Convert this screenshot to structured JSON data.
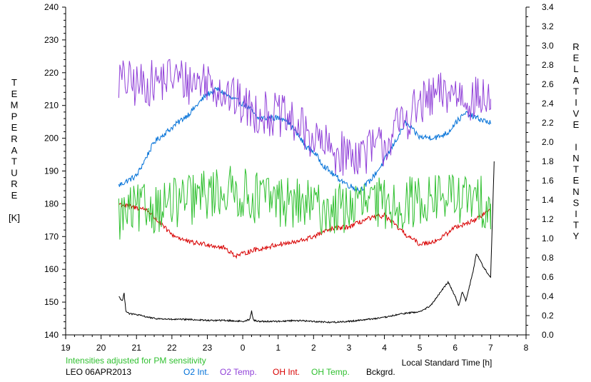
{
  "chart_data": {
    "type": "line",
    "x_unit": "Local Standard Time [h]",
    "xlabel": "Local Standard Time [h]",
    "ylabel_left": [
      "T",
      "E",
      "M",
      "P",
      "E",
      "R",
      "A",
      "T",
      "U",
      "R",
      "E",
      "",
      "[K]"
    ],
    "ylabel_right": [
      "R",
      "E",
      "L",
      "A",
      "T",
      "I",
      "V",
      "E",
      "",
      "I",
      "N",
      "T",
      "E",
      "N",
      "S",
      "I",
      "T",
      "Y"
    ],
    "x_ticks": [
      "19",
      "20",
      "21",
      "22",
      "23",
      "0",
      "1",
      "2",
      "3",
      "4",
      "5",
      "6",
      "7",
      "8"
    ],
    "x_range": [
      19,
      32
    ],
    "y_left_ticks": [
      "140",
      "150",
      "160",
      "170",
      "180",
      "190",
      "200",
      "210",
      "220",
      "230",
      "240"
    ],
    "y_left_range": [
      140,
      240
    ],
    "y_right_ticks": [
      "0.0",
      "0.2",
      "0.4",
      "0.6",
      "0.8",
      "1.0",
      "1.2",
      "1.4",
      "1.6",
      "1.8",
      "2.0",
      "2.2",
      "2.4",
      "2.6",
      "2.8",
      "3.0",
      "3.2",
      "3.4"
    ],
    "y_right_range": [
      0,
      3.4
    ],
    "footnote_pm": "Intensities adjusted for PM sensitivity",
    "station_date": "LEO 06APR2013",
    "series": [
      {
        "name": "O2 Int.",
        "axis": "right",
        "color": "#0070d8",
        "x": [
          20.5,
          21.0,
          21.5,
          22.0,
          22.5,
          23.0,
          23.3,
          23.7,
          24.0,
          24.2,
          24.4,
          24.8,
          25.2,
          25.5,
          25.8,
          26.0,
          26.3,
          26.6,
          27.0,
          27.3,
          27.6,
          27.9,
          28.3,
          28.6,
          29.0,
          29.5,
          29.8,
          30.0,
          30.3,
          30.6,
          31.0
        ],
        "y": [
          1.55,
          1.65,
          2.0,
          2.15,
          2.3,
          2.5,
          2.55,
          2.45,
          2.4,
          2.35,
          2.25,
          2.25,
          2.25,
          2.1,
          1.95,
          1.9,
          1.75,
          1.65,
          1.55,
          1.5,
          1.6,
          1.75,
          2.0,
          2.2,
          2.05,
          2.05,
          2.1,
          2.2,
          2.3,
          2.25,
          2.2
        ]
      },
      {
        "name": "O2 Temp.",
        "axis": "left",
        "color": "#9040d8",
        "x": [
          20.5,
          21.0,
          21.5,
          22.0,
          22.5,
          23.0,
          23.5,
          24.0,
          24.3,
          24.5,
          25.0,
          25.5,
          26.0,
          26.5,
          27.0,
          27.5,
          28.0,
          28.5,
          29.0,
          29.5,
          30.0,
          30.5,
          31.0
        ],
        "y": [
          218,
          216,
          217,
          219,
          217,
          218,
          214,
          210,
          208,
          208,
          207,
          204,
          200,
          196,
          195,
          196,
          198,
          205,
          210,
          213,
          214,
          212,
          212
        ]
      },
      {
        "name": "OH Int.",
        "axis": "right",
        "color": "#d80000",
        "x": [
          20.5,
          20.8,
          21.0,
          21.3,
          21.6,
          22.0,
          22.5,
          23.0,
          23.5,
          23.8,
          24.0,
          24.3,
          24.6,
          25.0,
          25.5,
          26.0,
          26.5,
          27.0,
          27.5,
          28.0,
          28.3,
          28.6,
          29.0,
          29.5,
          29.8,
          30.0,
          30.5,
          31.0
        ],
        "y": [
          1.36,
          1.33,
          1.32,
          1.3,
          1.18,
          1.04,
          0.96,
          0.94,
          0.9,
          0.82,
          0.84,
          0.88,
          0.9,
          0.94,
          0.96,
          1.02,
          1.1,
          1.12,
          1.2,
          1.24,
          1.14,
          1.04,
          0.94,
          0.98,
          1.06,
          1.12,
          1.18,
          1.3
        ]
      },
      {
        "name": "OH Temp.",
        "axis": "left",
        "color": "#30c030",
        "x": [
          20.5,
          21.0,
          21.5,
          22.0,
          22.5,
          23.0,
          23.5,
          24.0,
          24.3,
          24.6,
          25.0,
          25.5,
          26.0,
          26.5,
          27.0,
          27.5,
          28.0,
          28.5,
          29.0,
          29.5,
          30.0,
          30.5,
          31.0
        ],
        "y": [
          176,
          178,
          179,
          180,
          181,
          183,
          184,
          183,
          182,
          182,
          181,
          180,
          179,
          178,
          179,
          180,
          180,
          180,
          181,
          182,
          182,
          181,
          180
        ]
      },
      {
        "name": "Bckgrd.",
        "axis": "right",
        "color": "#000000",
        "x": [
          20.5,
          20.6,
          20.65,
          20.7,
          20.8,
          21.0,
          21.5,
          22.0,
          22.5,
          23.0,
          23.5,
          24.0,
          24.2,
          24.25,
          24.3,
          24.5,
          25.0,
          25.5,
          26.0,
          26.5,
          27.0,
          27.5,
          28.0,
          28.5,
          29.0,
          29.3,
          29.6,
          29.8,
          30.0,
          30.1,
          30.2,
          30.3,
          30.4,
          30.5,
          30.6,
          30.8,
          31.0,
          31.1
        ],
        "y": [
          0.4,
          0.35,
          0.43,
          0.25,
          0.22,
          0.21,
          0.17,
          0.16,
          0.16,
          0.15,
          0.15,
          0.14,
          0.16,
          0.25,
          0.15,
          0.14,
          0.14,
          0.15,
          0.14,
          0.13,
          0.14,
          0.16,
          0.18,
          0.22,
          0.24,
          0.3,
          0.45,
          0.55,
          0.4,
          0.3,
          0.45,
          0.35,
          0.5,
          0.65,
          0.85,
          0.7,
          0.6,
          1.8
        ]
      }
    ]
  }
}
